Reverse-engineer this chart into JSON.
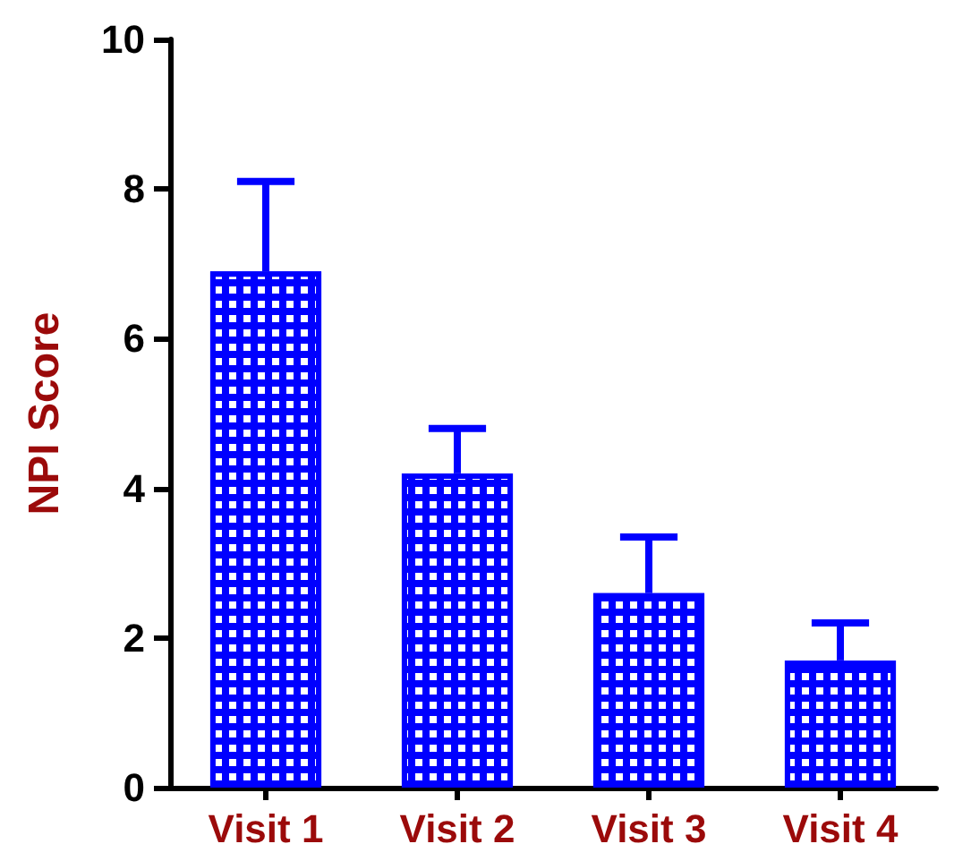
{
  "chart_data": {
    "type": "bar",
    "ylabel": "NPI Score",
    "categories": [
      "Visit 1",
      "Visit 2",
      "Visit 3",
      "Visit 4"
    ],
    "values": [
      6.9,
      4.2,
      2.6,
      1.7
    ],
    "errors": [
      [
        6.9,
        8.1
      ],
      [
        4.2,
        4.8
      ],
      [
        2.6,
        3.35
      ],
      [
        1.7,
        2.2
      ]
    ],
    "color": "#0000ff",
    "ylim": [
      0,
      10
    ],
    "yticks": [
      0,
      2,
      4,
      6,
      8,
      10
    ],
    "grid": false
  }
}
